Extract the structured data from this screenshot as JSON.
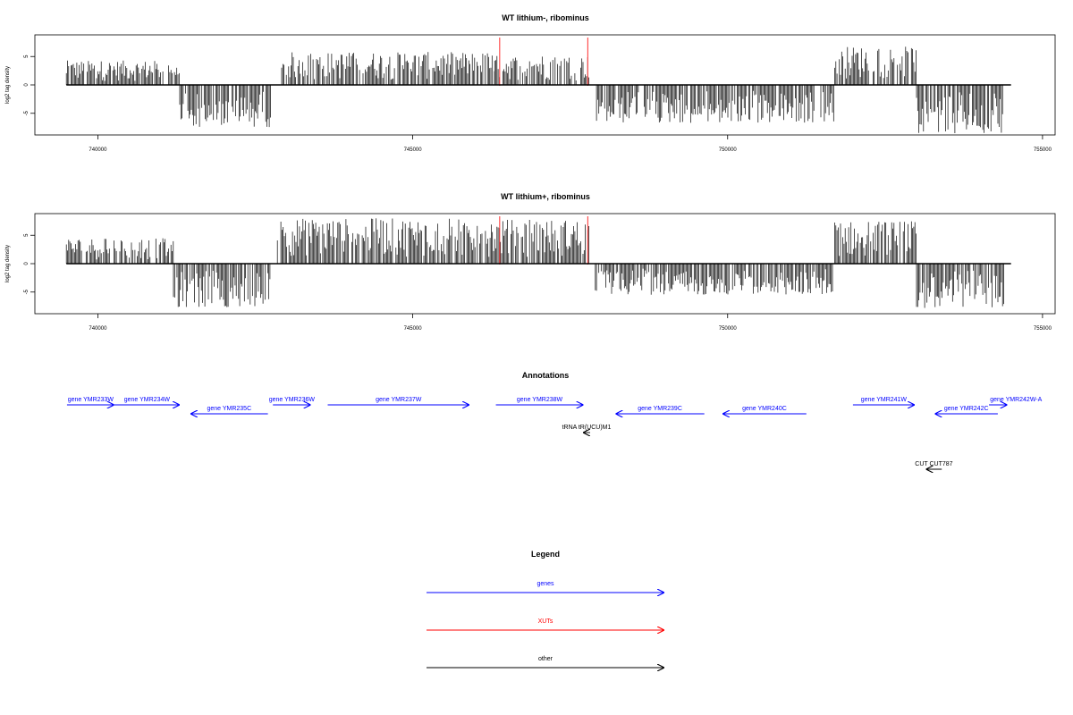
{
  "chart_data": [
    {
      "type": "bar",
      "title": "WT lithium-, ribominus",
      "ylabel": "log2 tag density",
      "xlabel": "",
      "xlim": [
        739000,
        755200
      ],
      "ylim": [
        -8.5,
        8.5
      ],
      "x_ticks": [
        "740000",
        "745000",
        "750000",
        "755000"
      ],
      "y_ticks": [
        "5",
        "0",
        "-5"
      ],
      "baseline": [
        739500,
        754500
      ],
      "markers": [
        746380,
        747780
      ],
      "regions": [
        {
          "from": 739500,
          "to": 741300,
          "sign": "plus",
          "max": 4.3
        },
        {
          "from": 741300,
          "to": 742750,
          "sign": "minus",
          "max": 7.5
        },
        {
          "from": 742900,
          "to": 746300,
          "sign": "plus",
          "max": 5.8
        },
        {
          "from": 746300,
          "to": 747800,
          "sign": "plus",
          "max": 5.2
        },
        {
          "from": 747900,
          "to": 751700,
          "sign": "minus",
          "max": 6.8
        },
        {
          "from": 751700,
          "to": 753000,
          "sign": "plus",
          "max": 6.8
        },
        {
          "from": 753000,
          "to": 754400,
          "sign": "minus",
          "max": 8.5
        }
      ]
    },
    {
      "type": "bar",
      "title": "WT lithium+, ribominus",
      "ylabel": "log2 tag density",
      "xlabel": "",
      "xlim": [
        739000,
        755200
      ],
      "ylim": [
        -8.5,
        8.5
      ],
      "x_ticks": [
        "740000",
        "745000",
        "750000",
        "755000"
      ],
      "y_ticks": [
        "5",
        "0",
        "-5"
      ],
      "baseline": [
        739500,
        754500
      ],
      "markers": [
        746380,
        747780
      ],
      "regions": [
        {
          "from": 739500,
          "to": 741200,
          "sign": "plus",
          "max": 4.5
        },
        {
          "from": 741200,
          "to": 742750,
          "sign": "minus",
          "max": 7.8
        },
        {
          "from": 742850,
          "to": 746300,
          "sign": "plus",
          "max": 8.0
        },
        {
          "from": 746300,
          "to": 747800,
          "sign": "plus",
          "max": 7.8
        },
        {
          "from": 747900,
          "to": 751700,
          "sign": "minus",
          "max": 5.5
        },
        {
          "from": 751700,
          "to": 753000,
          "sign": "plus",
          "max": 7.5
        },
        {
          "from": 753000,
          "to": 754400,
          "sign": "minus",
          "max": 7.8
        }
      ]
    }
  ],
  "annotations": {
    "title": "Annotations",
    "colors": {
      "gene": "#0000ff",
      "xut": "#ff0000",
      "other": "#000000"
    },
    "features": [
      {
        "label": "gene YMR233W",
        "type": "gene",
        "strand": "+",
        "start": 739510,
        "end": 740260,
        "row": 0
      },
      {
        "label": "gene YMR234W",
        "type": "gene",
        "strand": "+",
        "start": 740260,
        "end": 741300,
        "row": 0
      },
      {
        "label": "gene YMR235C",
        "type": "gene",
        "strand": "-",
        "start": 741470,
        "end": 742700,
        "row": 1
      },
      {
        "label": "gene YMR236W",
        "type": "gene",
        "strand": "+",
        "start": 742780,
        "end": 743380,
        "row": 0
      },
      {
        "label": "gene YMR237W",
        "type": "gene",
        "strand": "+",
        "start": 743650,
        "end": 745900,
        "row": 0
      },
      {
        "label": "gene YMR238W",
        "type": "gene",
        "strand": "+",
        "start": 746320,
        "end": 747710,
        "row": 0
      },
      {
        "label": "gene YMR239C",
        "type": "gene",
        "strand": "-",
        "start": 748220,
        "end": 749630,
        "row": 1
      },
      {
        "label": "gene YMR240C",
        "type": "gene",
        "strand": "-",
        "start": 749920,
        "end": 751250,
        "row": 1
      },
      {
        "label": "gene YMR241W",
        "type": "gene",
        "strand": "+",
        "start": 751990,
        "end": 752970,
        "row": 0
      },
      {
        "label": "gene YMR242C",
        "type": "gene",
        "strand": "-",
        "start": 753290,
        "end": 754290,
        "row": 1
      },
      {
        "label": "gene YMR242W-A",
        "type": "gene",
        "strand": "+",
        "start": 754150,
        "end": 754440,
        "row": 0,
        "label_dx": 20
      },
      {
        "label": "tRNA tR(UCU)M1",
        "type": "other",
        "strand": "-",
        "start": 747720,
        "end": 747800,
        "row": 2
      },
      {
        "label": "CUT CUT787",
        "type": "other",
        "strand": "-",
        "start": 753150,
        "end": 753400,
        "row": 3
      }
    ]
  },
  "legend": {
    "title": "Legend",
    "items": [
      {
        "label": "genes",
        "color": "#0000ff"
      },
      {
        "label": "XUTs",
        "color": "#ff0000"
      },
      {
        "label": "other",
        "color": "#000000"
      }
    ]
  }
}
